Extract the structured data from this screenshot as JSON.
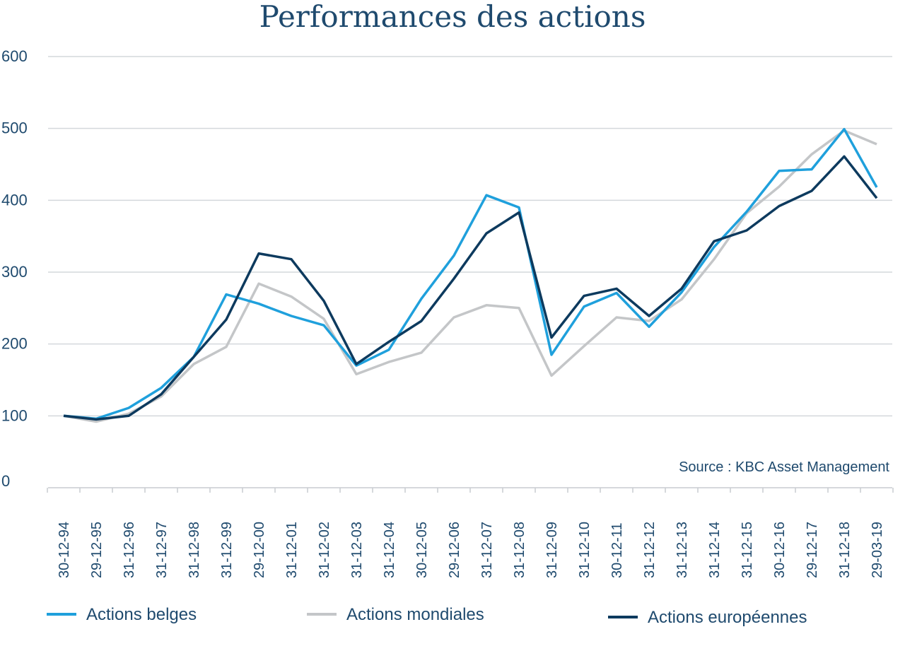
{
  "chart_data": {
    "type": "line",
    "title": "Performances des actions",
    "source": "Source : KBC Asset Management",
    "ylim": [
      0,
      600
    ],
    "yticks": [
      "0",
      "100",
      "200",
      "300",
      "400",
      "500",
      "600"
    ],
    "categories": [
      "30-12-94",
      "29-12-95",
      "31-12-96",
      "31-12-97",
      "31-12-98",
      "31-12-99",
      "29-12-00",
      "31-12-01",
      "31-12-02",
      "31-12-03",
      "31-12-04",
      "30-12-05",
      "29-12-06",
      "31-12-07",
      "31-12-08",
      "31-12-09",
      "31-12-10",
      "30-12-11",
      "31-12-12",
      "31-12-13",
      "31-12-14",
      "31-12-15",
      "30-12-16",
      "29-12-17",
      "31-12-18",
      "29-03-19"
    ],
    "series": [
      {
        "name": "Actions belges",
        "color": "#1fa0dc",
        "values": [
          100,
          96,
          111,
          139,
          182,
          269,
          256,
          239,
          226,
          170,
          192,
          263,
          323,
          407,
          390,
          185,
          252,
          271,
          224,
          272,
          335,
          384,
          441,
          443,
          499,
          418
        ]
      },
      {
        "name": "Actions mondiales",
        "color": "#c4c6c8",
        "values": [
          100,
          92,
          103,
          127,
          172,
          196,
          284,
          266,
          235,
          158,
          175,
          188,
          237,
          254,
          250,
          156,
          197,
          237,
          232,
          262,
          318,
          382,
          419,
          464,
          497,
          478
        ]
      },
      {
        "name": "Actions européennes",
        "color": "#0d3a5e",
        "values": [
          100,
          95,
          100,
          130,
          182,
          234,
          326,
          318,
          260,
          172,
          203,
          232,
          291,
          354,
          383,
          209,
          267,
          277,
          239,
          277,
          343,
          358,
          392,
          413,
          461,
          403
        ]
      }
    ]
  }
}
